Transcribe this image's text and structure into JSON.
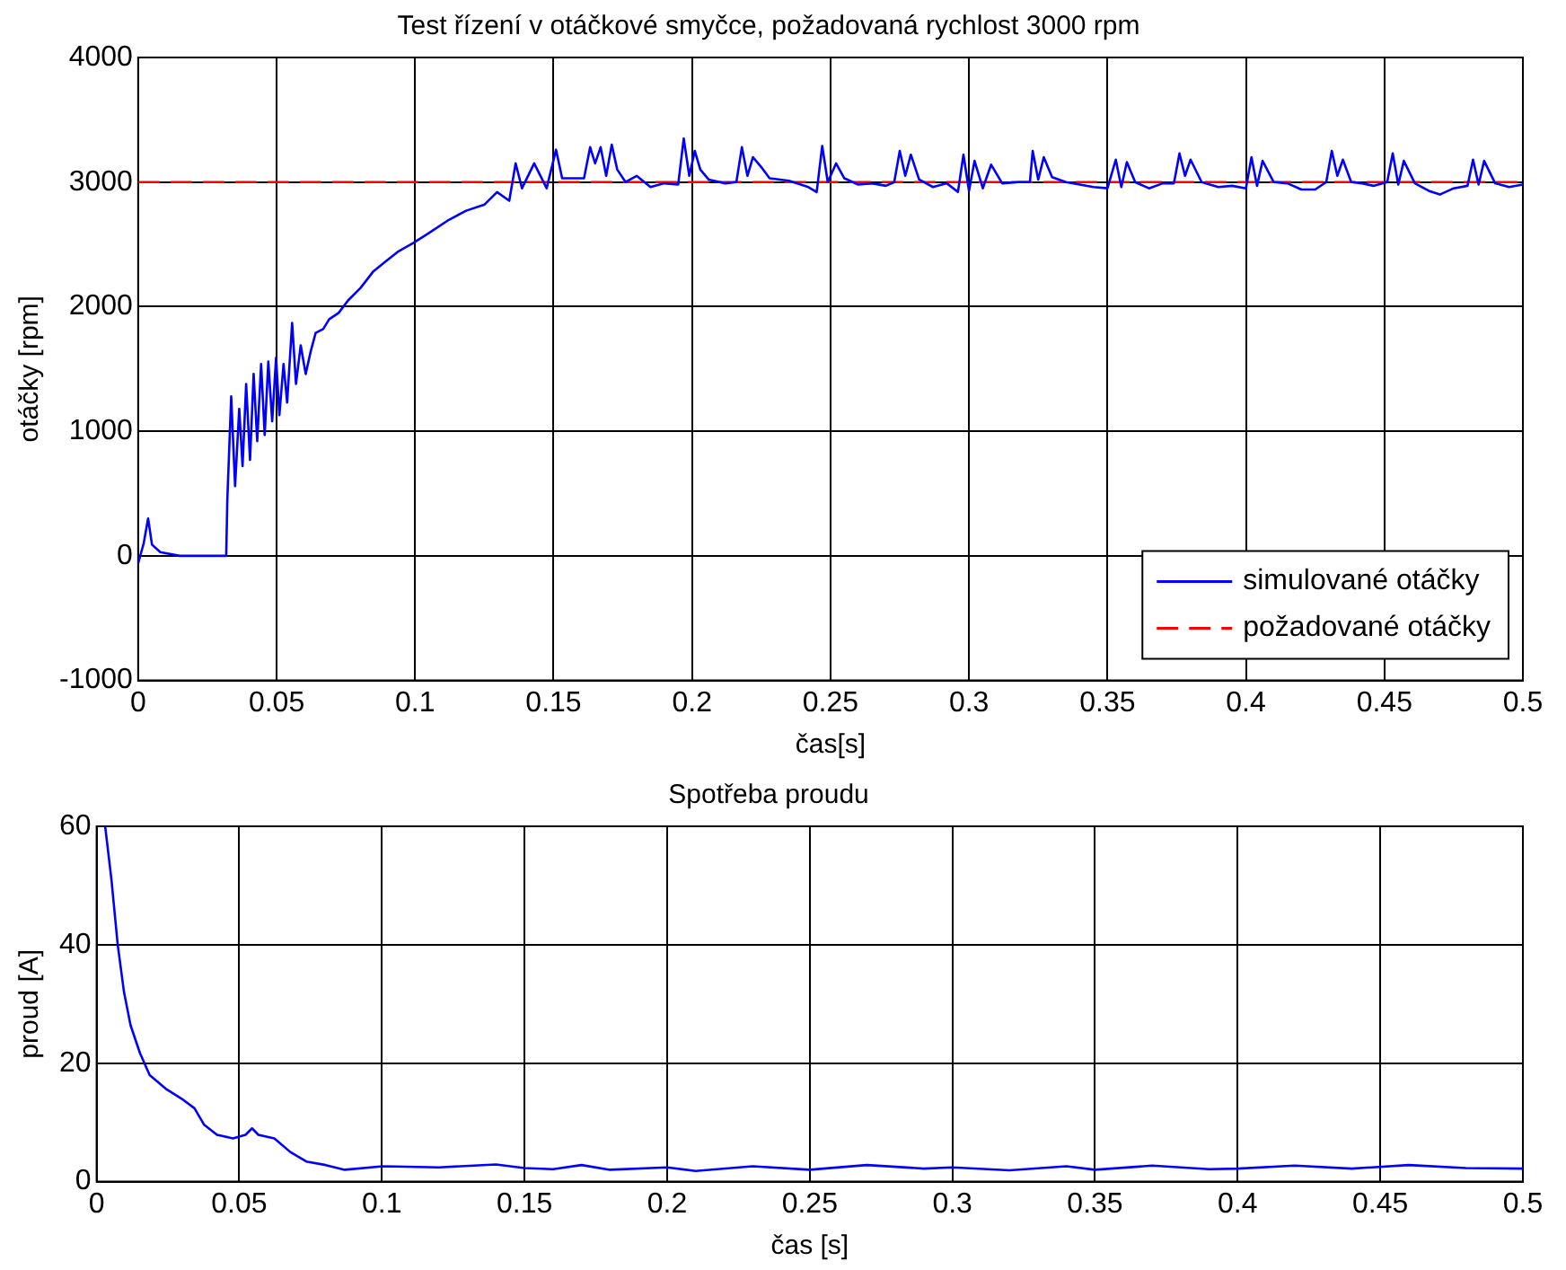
{
  "chart_data": [
    {
      "type": "line",
      "title": "Test řízení v otáčkové smyčce, požadovaná rychlost 3000 rpm",
      "xlabel": "čas[s]",
      "ylabel": "otáčky [rpm]",
      "xlim": [
        0,
        0.5
      ],
      "xticks": [
        0,
        0.05,
        0.1,
        0.15,
        0.2,
        0.25,
        0.3,
        0.35,
        0.4,
        0.45,
        0.5
      ],
      "ylim": [
        -1000,
        4000
      ],
      "yticks": [
        -1000,
        0,
        1000,
        2000,
        3000,
        4000
      ],
      "grid": true,
      "legend": "bottom right",
      "marker": "none",
      "series": [
        {
          "name": "simulované otáčky",
          "color": "#0000ff",
          "line_style": "solid",
          "x": [
            0,
            0.002,
            0.0036,
            0.005,
            0.008,
            0.015,
            0.025,
            0.0318,
            0.0322,
            0.0336,
            0.035,
            0.0365,
            0.0377,
            0.039,
            0.0404,
            0.0417,
            0.043,
            0.0444,
            0.0457,
            0.047,
            0.0484,
            0.0498,
            0.051,
            0.0525,
            0.0538,
            0.0556,
            0.057,
            0.0587,
            0.0605,
            0.0623,
            0.0641,
            0.0668,
            0.069,
            0.0724,
            0.0758,
            0.0803,
            0.0848,
            0.0892,
            0.0937,
            0.0993,
            0.1049,
            0.1117,
            0.1184,
            0.1251,
            0.1296,
            0.134,
            0.1363,
            0.1386,
            0.143,
            0.1475,
            0.1509,
            0.1531,
            0.161,
            0.1632,
            0.165,
            0.167,
            0.169,
            0.171,
            0.173,
            0.176,
            0.18,
            0.185,
            0.19,
            0.195,
            0.197,
            0.199,
            0.201,
            0.203,
            0.206,
            0.212,
            0.216,
            0.218,
            0.22,
            0.222,
            0.225,
            0.228,
            0.235,
            0.242,
            0.245,
            0.247,
            0.249,
            0.252,
            0.255,
            0.26,
            0.265,
            0.27,
            0.273,
            0.275,
            0.277,
            0.279,
            0.282,
            0.287,
            0.292,
            0.296,
            0.298,
            0.3,
            0.302,
            0.305,
            0.308,
            0.312,
            0.318,
            0.322,
            0.323,
            0.325,
            0.327,
            0.33,
            0.335,
            0.34,
            0.345,
            0.35,
            0.353,
            0.355,
            0.357,
            0.36,
            0.365,
            0.37,
            0.374,
            0.376,
            0.378,
            0.38,
            0.384,
            0.39,
            0.395,
            0.4,
            0.402,
            0.404,
            0.406,
            0.41,
            0.415,
            0.42,
            0.425,
            0.429,
            0.431,
            0.433,
            0.435,
            0.438,
            0.442,
            0.446,
            0.451,
            0.453,
            0.455,
            0.457,
            0.461,
            0.466,
            0.47,
            0.475,
            0.48,
            0.482,
            0.484,
            0.486,
            0.49,
            0.495,
            0.5
          ],
          "values": [
            -60,
            100,
            300,
            90,
            30,
            0,
            0,
            0,
            450,
            1280,
            560,
            1180,
            720,
            1380,
            770,
            1460,
            920,
            1540,
            970,
            1560,
            1080,
            1590,
            1130,
            1540,
            1230,
            1870,
            1380,
            1690,
            1460,
            1640,
            1790,
            1820,
            1900,
            1950,
            2050,
            2150,
            2280,
            2360,
            2440,
            2510,
            2590,
            2690,
            2770,
            2820,
            2920,
            2850,
            3150,
            2950,
            3150,
            2950,
            3260,
            3030,
            3030,
            3280,
            3150,
            3280,
            3050,
            3300,
            3100,
            3000,
            3050,
            2960,
            2990,
            2980,
            3350,
            3050,
            3250,
            3100,
            3020,
            2990,
            3000,
            3280,
            3050,
            3200,
            3120,
            3030,
            3010,
            2960,
            2920,
            3290,
            3000,
            3150,
            3030,
            2980,
            2990,
            2970,
            3000,
            3250,
            3050,
            3220,
            3020,
            2960,
            2990,
            2920,
            3220,
            2930,
            3170,
            2950,
            3140,
            2990,
            3000,
            3000,
            3250,
            3020,
            3200,
            3040,
            3000,
            2980,
            2960,
            2950,
            3180,
            2960,
            3160,
            3000,
            2950,
            2990,
            2990,
            3230,
            3050,
            3180,
            3000,
            2960,
            2970,
            2950,
            3200,
            2970,
            3170,
            3000,
            2990,
            2940,
            2940,
            3000,
            3250,
            3050,
            3180,
            3000,
            2990,
            2970,
            3000,
            3230,
            2980,
            3170,
            2990,
            2930,
            2900,
            2950,
            2970,
            3180,
            2980,
            3170,
            2990,
            2960,
            2980
          ]
        },
        {
          "name": "požadované otáčky",
          "color": "#ff0000",
          "line_style": "dashed",
          "x": [
            0,
            0.5
          ],
          "values": [
            3000,
            3000
          ]
        }
      ]
    },
    {
      "type": "line",
      "title": "Spotřeba proudu",
      "xlabel": "čas [s]",
      "ylabel": "proud [A]",
      "xlim": [
        0,
        0.5
      ],
      "xticks": [
        0,
        0.05,
        0.1,
        0.15,
        0.2,
        0.25,
        0.3,
        0.35,
        0.4,
        0.45,
        0.5
      ],
      "ylim": [
        0,
        60
      ],
      "yticks": [
        0,
        20,
        40,
        60
      ],
      "grid": true,
      "marker": "none",
      "series": [
        {
          "color": "#0000ff",
          "line_style": "solid",
          "x": [
            0.003,
            0.0052,
            0.0074,
            0.0096,
            0.0119,
            0.0152,
            0.0186,
            0.0242,
            0.0298,
            0.0343,
            0.0377,
            0.0422,
            0.0478,
            0.0522,
            0.0545,
            0.0567,
            0.0623,
            0.0679,
            0.0735,
            0.0803,
            0.087,
            0.1004,
            0.12,
            0.14,
            0.15,
            0.16,
            0.17,
            0.18,
            0.2,
            0.21,
            0.23,
            0.25,
            0.27,
            0.29,
            0.3,
            0.32,
            0.34,
            0.35,
            0.37,
            0.39,
            0.4,
            0.42,
            0.44,
            0.46,
            0.48,
            0.5
          ],
          "values": [
            60,
            51,
            40,
            32,
            26.4,
            21.7,
            18,
            15.7,
            14,
            12.4,
            9.6,
            7.9,
            7.3,
            7.9,
            9,
            7.9,
            7.3,
            5,
            3.4,
            2.8,
            2,
            2.6,
            2.4,
            2.9,
            2.3,
            2.1,
            2.8,
            2,
            2.4,
            1.8,
            2.6,
            2,
            2.8,
            2.2,
            2.4,
            1.9,
            2.6,
            2,
            2.7,
            2.1,
            2.2,
            2.7,
            2.2,
            2.8,
            2.3,
            2.2
          ]
        }
      ]
    }
  ]
}
